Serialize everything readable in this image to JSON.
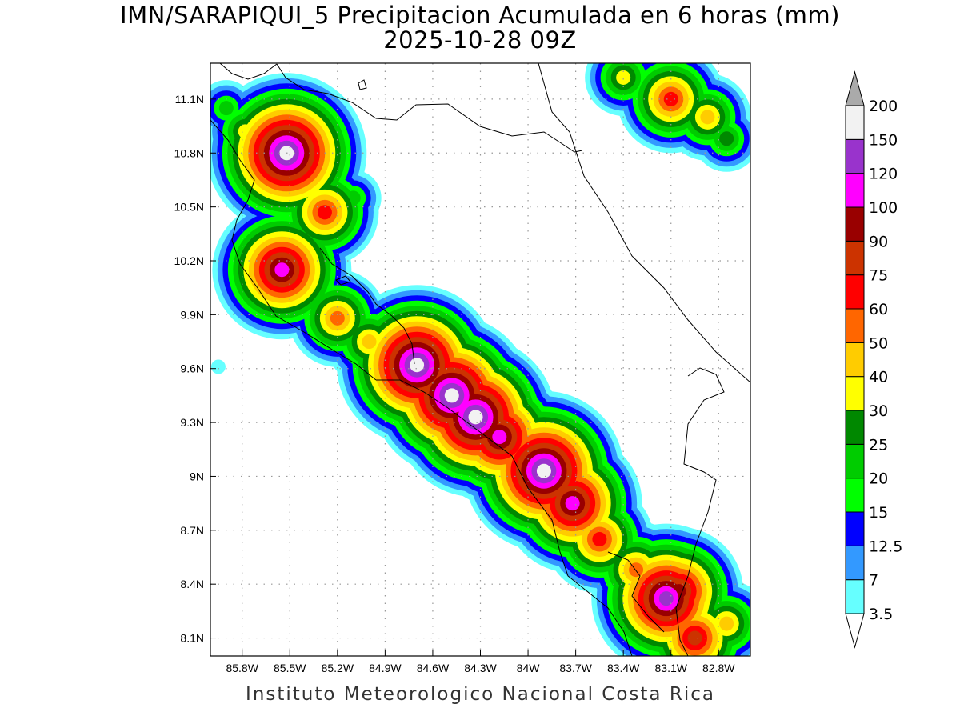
{
  "title": {
    "line1": "IMN/SARAPIQUI_5 Precipitacion Acumulada en 6 horas (mm)",
    "line2": "2025-10-28 09Z"
  },
  "credit": "Instituto Meteorologico Nacional Costa Rica",
  "map": {
    "lon_range": [
      -86.0,
      -82.6
    ],
    "lat_range": [
      8.0,
      11.3
    ],
    "lon_ticks": [
      {
        "value": -85.8,
        "label": "85.8W"
      },
      {
        "value": -85.5,
        "label": "85.5W"
      },
      {
        "value": -85.2,
        "label": "85.2W"
      },
      {
        "value": -84.9,
        "label": "84.9W"
      },
      {
        "value": -84.6,
        "label": "84.6W"
      },
      {
        "value": -84.3,
        "label": "84.3W"
      },
      {
        "value": -84.0,
        "label": "84W"
      },
      {
        "value": -83.7,
        "label": "83.7W"
      },
      {
        "value": -83.4,
        "label": "83.4W"
      },
      {
        "value": -83.1,
        "label": "83.1W"
      },
      {
        "value": -82.8,
        "label": "82.8W"
      }
    ],
    "lat_ticks": [
      {
        "value": 11.1,
        "label": "11.1N"
      },
      {
        "value": 10.8,
        "label": "10.8N"
      },
      {
        "value": 10.5,
        "label": "10.5N"
      },
      {
        "value": 10.2,
        "label": "10.2N"
      },
      {
        "value": 9.9,
        "label": "9.9N"
      },
      {
        "value": 9.6,
        "label": "9.6N"
      },
      {
        "value": 9.3,
        "label": "9.3N"
      },
      {
        "value": 9.0,
        "label": "9N"
      },
      {
        "value": 8.7,
        "label": "8.7N"
      },
      {
        "value": 8.4,
        "label": "8.4N"
      },
      {
        "value": 8.1,
        "label": "8.1N"
      }
    ]
  },
  "colorbar": {
    "unit": "mm",
    "levels": [
      "3.5",
      "7",
      "12.5",
      "15",
      "20",
      "25",
      "30",
      "40",
      "50",
      "60",
      "75",
      "90",
      "100",
      "120",
      "150",
      "200"
    ],
    "colors": [
      "#66ffff",
      "#3399ff",
      "#0000ff",
      "#00ff00",
      "#00cc00",
      "#008800",
      "#ffff00",
      "#ffcc00",
      "#ff6600",
      "#ff0000",
      "#cc3300",
      "#990000",
      "#ff00ff",
      "#9933cc",
      "#f2f2f2",
      "#aaaaaa"
    ]
  },
  "precip_cells": [
    {
      "lon": -85.52,
      "lat": 10.8,
      "amount": 150
    },
    {
      "lon": -85.6,
      "lat": 10.9,
      "amount": 40
    },
    {
      "lon": -85.78,
      "lat": 10.92,
      "amount": 30
    },
    {
      "lon": -85.9,
      "lat": 11.05,
      "amount": 20
    },
    {
      "lon": -85.4,
      "lat": 10.6,
      "amount": 30
    },
    {
      "lon": -85.28,
      "lat": 10.47,
      "amount": 60
    },
    {
      "lon": -85.1,
      "lat": 10.55,
      "amount": 20
    },
    {
      "lon": -85.55,
      "lat": 10.15,
      "amount": 100
    },
    {
      "lon": -85.45,
      "lat": 10.22,
      "amount": 40
    },
    {
      "lon": -85.55,
      "lat": 9.98,
      "amount": 25
    },
    {
      "lon": -85.2,
      "lat": 9.88,
      "amount": 50
    },
    {
      "lon": -85.0,
      "lat": 9.75,
      "amount": 40
    },
    {
      "lon": -84.9,
      "lat": 9.68,
      "amount": 25
    },
    {
      "lon": -84.7,
      "lat": 9.62,
      "amount": 150
    },
    {
      "lon": -84.48,
      "lat": 9.45,
      "amount": 150
    },
    {
      "lon": -84.33,
      "lat": 9.33,
      "amount": 150
    },
    {
      "lon": -84.18,
      "lat": 9.22,
      "amount": 100
    },
    {
      "lon": -84.25,
      "lat": 9.38,
      "amount": 40
    },
    {
      "lon": -83.9,
      "lat": 9.03,
      "amount": 150
    },
    {
      "lon": -83.72,
      "lat": 8.85,
      "amount": 100
    },
    {
      "lon": -83.55,
      "lat": 8.65,
      "amount": 60
    },
    {
      "lon": -83.32,
      "lat": 8.48,
      "amount": 50
    },
    {
      "lon": -83.13,
      "lat": 8.32,
      "amount": 120
    },
    {
      "lon": -83.05,
      "lat": 8.36,
      "amount": 90
    },
    {
      "lon": -82.95,
      "lat": 8.1,
      "amount": 75
    },
    {
      "lon": -82.75,
      "lat": 8.18,
      "amount": 40
    },
    {
      "lon": -83.05,
      "lat": 8.52,
      "amount": 25
    },
    {
      "lon": -82.78,
      "lat": 8.45,
      "amount": 12.5
    },
    {
      "lon": -83.4,
      "lat": 11.22,
      "amount": 30
    },
    {
      "lon": -83.1,
      "lat": 11.1,
      "amount": 60
    },
    {
      "lon": -82.87,
      "lat": 11.0,
      "amount": 40
    },
    {
      "lon": -82.75,
      "lat": 10.88,
      "amount": 25
    },
    {
      "lon": -83.6,
      "lat": 8.73,
      "amount": 12.5
    },
    {
      "lon": -85.95,
      "lat": 9.61,
      "amount": 3.5
    }
  ]
}
